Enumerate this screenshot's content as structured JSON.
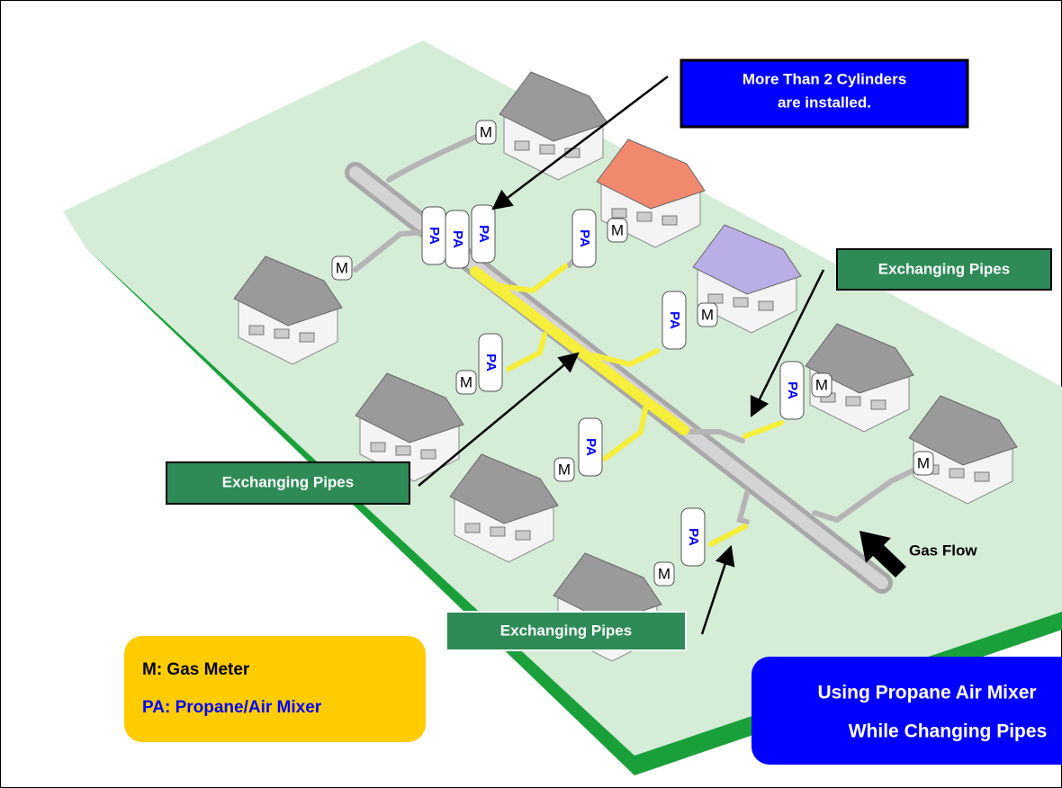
{
  "callout": {
    "lines": [
      "More Than 2 Cylinders",
      "are installed."
    ]
  },
  "exchange_labels": [
    "Exchanging Pipes",
    "Exchanging Pipes",
    "Exchanging Pipes"
  ],
  "flow_label": "Gas Flow",
  "legend": {
    "meter": "M: Gas Meter",
    "mixer": "PA: Propane/Air Mixer"
  },
  "banner": {
    "lines": [
      "Using Propane Air Mixer",
      "While Changing Pipes"
    ]
  },
  "meters": [
    "M",
    "M",
    "M",
    "M",
    "M",
    "M",
    "M",
    "M",
    "M"
  ],
  "mixers": [
    "PA",
    "PA",
    "PA",
    "PA",
    "PA",
    "PA",
    "PA",
    "PA",
    "PA"
  ]
}
